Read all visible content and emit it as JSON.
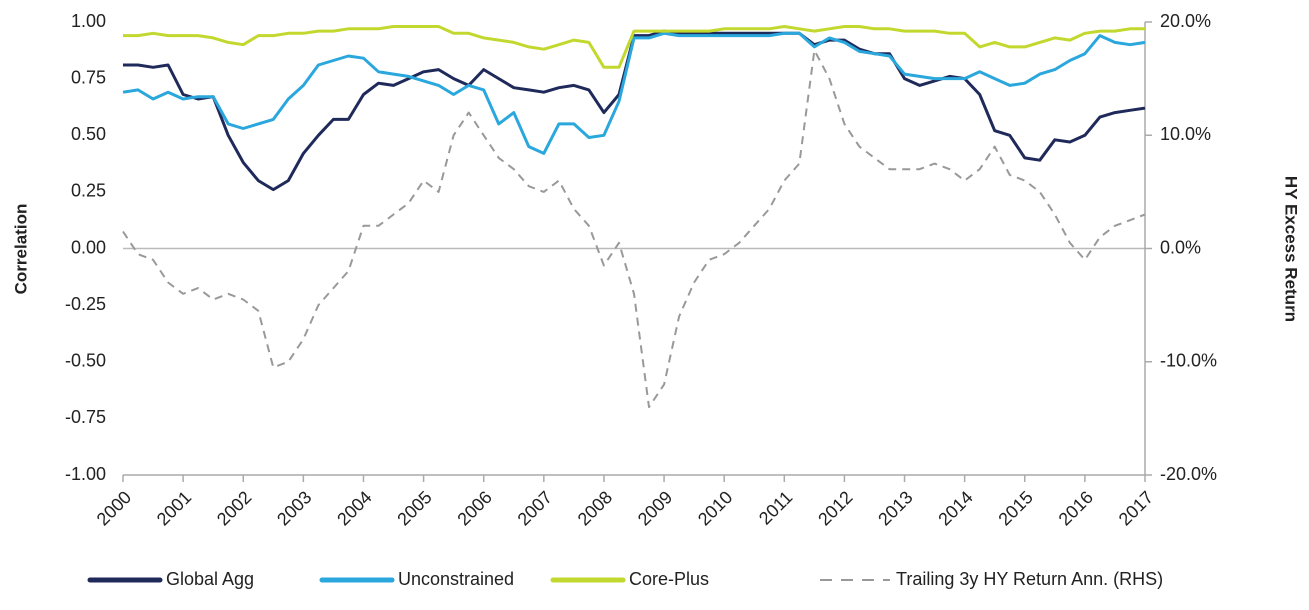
{
  "chart_data": {
    "type": "line",
    "y_label": "Correlation",
    "y2_label": "HY Excess Return",
    "x": [
      2000,
      2000.25,
      2000.5,
      2000.75,
      2001,
      2001.25,
      2001.5,
      2001.75,
      2002,
      2002.25,
      2002.5,
      2002.75,
      2003,
      2003.25,
      2003.5,
      2003.75,
      2004,
      2004.25,
      2004.5,
      2004.75,
      2005,
      2005.25,
      2005.5,
      2005.75,
      2006,
      2006.25,
      2006.5,
      2006.75,
      2007,
      2007.25,
      2007.5,
      2007.75,
      2008,
      2008.25,
      2008.5,
      2008.75,
      2009,
      2009.25,
      2009.5,
      2009.75,
      2010,
      2010.25,
      2010.5,
      2010.75,
      2011,
      2011.25,
      2011.5,
      2011.75,
      2012,
      2012.25,
      2012.5,
      2012.75,
      2013,
      2013.25,
      2013.5,
      2013.75,
      2014,
      2014.25,
      2014.5,
      2014.75,
      2015,
      2015.25,
      2015.5,
      2015.75,
      2016,
      2016.25,
      2016.5,
      2016.75,
      2017
    ],
    "xlim": [
      2000,
      2017
    ],
    "xticks": [
      2000,
      2001,
      2002,
      2003,
      2004,
      2005,
      2006,
      2007,
      2008,
      2009,
      2010,
      2011,
      2012,
      2013,
      2014,
      2015,
      2016,
      2017
    ],
    "ylim": [
      -1,
      1
    ],
    "yticks": [
      {
        "value": 1,
        "label": "1.00"
      },
      {
        "value": 0.75,
        "label": "0.75"
      },
      {
        "value": 0.5,
        "label": "0.50"
      },
      {
        "value": 0.25,
        "label": "0.25"
      },
      {
        "value": 0,
        "label": "0.00"
      },
      {
        "value": -0.25,
        "label": "-0.25"
      },
      {
        "value": -0.5,
        "label": "-0.50"
      },
      {
        "value": -0.75,
        "label": "-0.75"
      },
      {
        "value": -1,
        "label": "-1.00"
      }
    ],
    "y2lim": [
      -20,
      20
    ],
    "y2ticks": [
      {
        "value": 20,
        "label": "20.0%"
      },
      {
        "value": 10,
        "label": "10.0%"
      },
      {
        "value": 0,
        "label": "0.0%"
      },
      {
        "value": -10,
        "label": "-10.0%"
      },
      {
        "value": -20,
        "label": "-20.0%"
      }
    ],
    "zero_line": true,
    "legend": "bottom",
    "series": [
      {
        "name": "Global Agg",
        "color": "#1f2a5a",
        "values": [
          0.81,
          0.81,
          0.8,
          0.81,
          0.68,
          0.66,
          0.67,
          0.5,
          0.38,
          0.3,
          0.26,
          0.3,
          0.42,
          0.5,
          0.57,
          0.57,
          0.68,
          0.73,
          0.72,
          0.75,
          0.78,
          0.79,
          0.75,
          0.72,
          0.79,
          0.75,
          0.71,
          0.7,
          0.69,
          0.71,
          0.72,
          0.7,
          0.6,
          0.68,
          0.94,
          0.94,
          0.96,
          0.95,
          0.95,
          0.95,
          0.95,
          0.95,
          0.95,
          0.95,
          0.95,
          0.95,
          0.9,
          0.92,
          0.92,
          0.88,
          0.86,
          0.86,
          0.75,
          0.72,
          0.74,
          0.76,
          0.75,
          0.68,
          0.52,
          0.5,
          0.4,
          0.39,
          0.48,
          0.47,
          0.5,
          0.58,
          0.6,
          0.61,
          0.62
        ]
      },
      {
        "name": "Unconstrained",
        "color": "#2aa7dc",
        "values": [
          0.69,
          0.7,
          0.66,
          0.69,
          0.66,
          0.67,
          0.67,
          0.55,
          0.53,
          0.55,
          0.57,
          0.66,
          0.72,
          0.81,
          0.83,
          0.85,
          0.84,
          0.78,
          0.77,
          0.76,
          0.74,
          0.72,
          0.68,
          0.72,
          0.7,
          0.55,
          0.6,
          0.45,
          0.42,
          0.55,
          0.55,
          0.49,
          0.5,
          0.65,
          0.93,
          0.93,
          0.95,
          0.94,
          0.94,
          0.94,
          0.94,
          0.94,
          0.94,
          0.94,
          0.95,
          0.95,
          0.89,
          0.93,
          0.91,
          0.87,
          0.86,
          0.85,
          0.77,
          0.76,
          0.75,
          0.75,
          0.75,
          0.78,
          0.75,
          0.72,
          0.73,
          0.77,
          0.79,
          0.83,
          0.86,
          0.94,
          0.91,
          0.9,
          0.91
        ]
      },
      {
        "name": "Core-Plus",
        "color": "#c3d82e",
        "values": [
          0.94,
          0.94,
          0.95,
          0.94,
          0.94,
          0.94,
          0.93,
          0.91,
          0.9,
          0.94,
          0.94,
          0.95,
          0.95,
          0.96,
          0.96,
          0.97,
          0.97,
          0.97,
          0.98,
          0.98,
          0.98,
          0.98,
          0.95,
          0.95,
          0.93,
          0.92,
          0.91,
          0.89,
          0.88,
          0.9,
          0.92,
          0.91,
          0.8,
          0.8,
          0.96,
          0.96,
          0.96,
          0.96,
          0.96,
          0.96,
          0.97,
          0.97,
          0.97,
          0.97,
          0.98,
          0.97,
          0.96,
          0.97,
          0.98,
          0.98,
          0.97,
          0.97,
          0.96,
          0.96,
          0.96,
          0.95,
          0.95,
          0.89,
          0.91,
          0.89,
          0.89,
          0.91,
          0.93,
          0.92,
          0.95,
          0.96,
          0.96,
          0.97,
          0.97
        ]
      },
      {
        "name": "Trailing 3y HY Return Ann. (RHS)",
        "color": "#999999",
        "dashed": true,
        "axis": "y2",
        "values": [
          1.5,
          -0.5,
          -1.0,
          -3.0,
          -4.0,
          -3.5,
          -4.5,
          -4.0,
          -4.5,
          -5.5,
          -10.5,
          -10.0,
          -8.0,
          -5.0,
          -3.5,
          -2.0,
          2.0,
          2.0,
          3.0,
          4.0,
          6.0,
          5.0,
          10.0,
          12.0,
          10.0,
          8.0,
          7.0,
          5.5,
          5.0,
          6.0,
          3.5,
          2.0,
          -1.5,
          0.5,
          -4.0,
          -14.0,
          -12.0,
          -6.0,
          -3.0,
          -1.0,
          -0.5,
          0.5,
          2.0,
          3.5,
          6.0,
          7.5,
          17.5,
          15.0,
          11.0,
          9.0,
          8.0,
          7.0,
          7.0,
          7.0,
          7.5,
          7.0,
          6.0,
          7.0,
          9.0,
          6.5,
          6.0,
          5.0,
          3.0,
          0.5,
          -1.0,
          1.0,
          2.0,
          2.5,
          3.0
        ]
      }
    ]
  }
}
